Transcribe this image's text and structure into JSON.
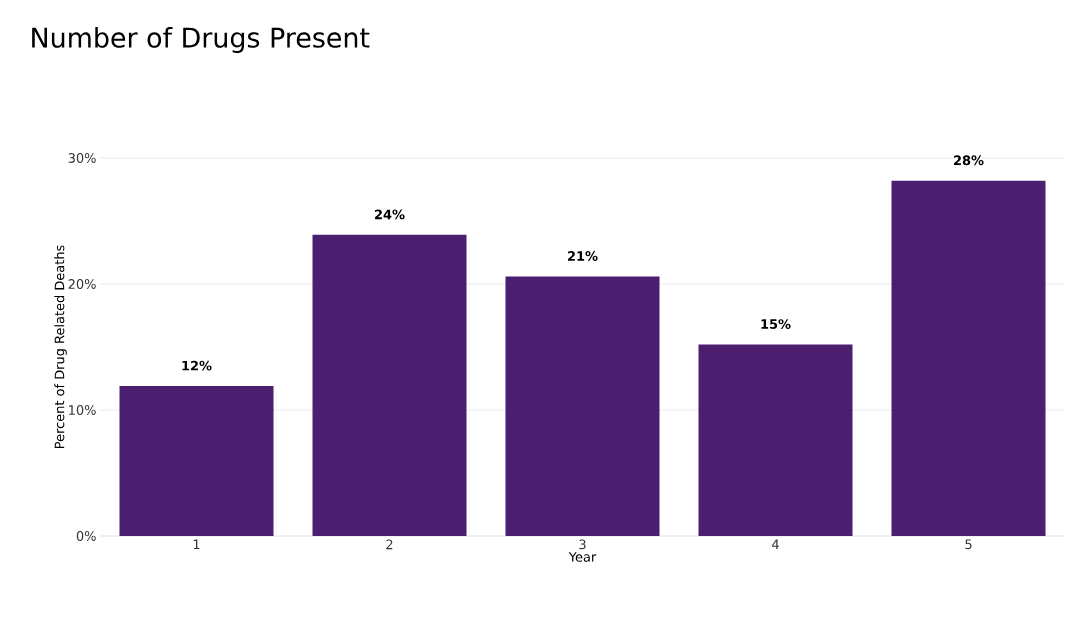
{
  "chart_data": {
    "type": "bar",
    "title": "Number of Drugs Present",
    "xlabel": "Year",
    "ylabel": "Percent of Drug Related Deaths",
    "categories": [
      "1",
      "2",
      "3",
      "4",
      "5"
    ],
    "values": [
      11.9,
      23.9,
      20.6,
      15.2,
      28.2
    ],
    "value_labels": [
      "12%",
      "24%",
      "21%",
      "15%",
      "28%"
    ],
    "color": "#4b1e6f",
    "ylim": [
      0,
      30
    ],
    "yticks": [
      {
        "value": 0,
        "label": "0%"
      },
      {
        "value": 10,
        "label": "10%"
      },
      {
        "value": 20,
        "label": "20%"
      },
      {
        "value": 30,
        "label": "30%"
      }
    ],
    "grid": "y"
  }
}
